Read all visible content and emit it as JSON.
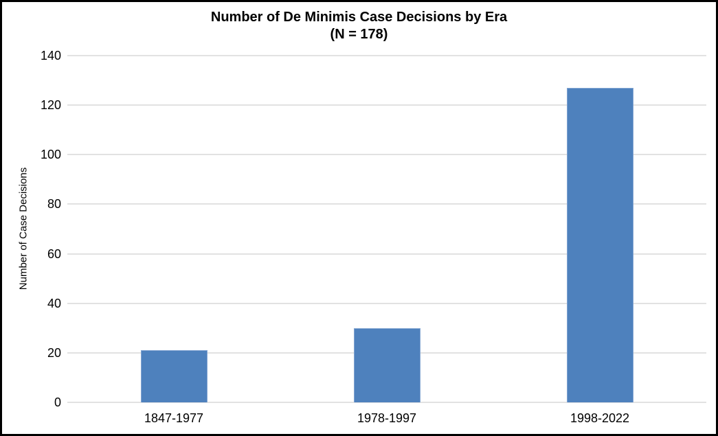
{
  "chart_data": {
    "type": "bar",
    "title": "Number of De Minimis Case Decisions by Era",
    "subtitle": "(N = 178)",
    "categories": [
      "1847-1977",
      "1978-1997",
      "1998-2022"
    ],
    "values": [
      21,
      30,
      127
    ],
    "total_n": 178,
    "xlabel": "",
    "ylabel": "Number of Case Decisions",
    "ylim": [
      0,
      140
    ],
    "yticks": [
      0,
      20,
      40,
      60,
      80,
      100,
      120,
      140
    ],
    "grid": true,
    "legend_position": "none",
    "bar_color": "#4E81BD",
    "bar_border_color": "#83A5D2",
    "gridline_color": "#E2E2E2",
    "text_color": "#000000",
    "frame_border_color": "#000000"
  }
}
